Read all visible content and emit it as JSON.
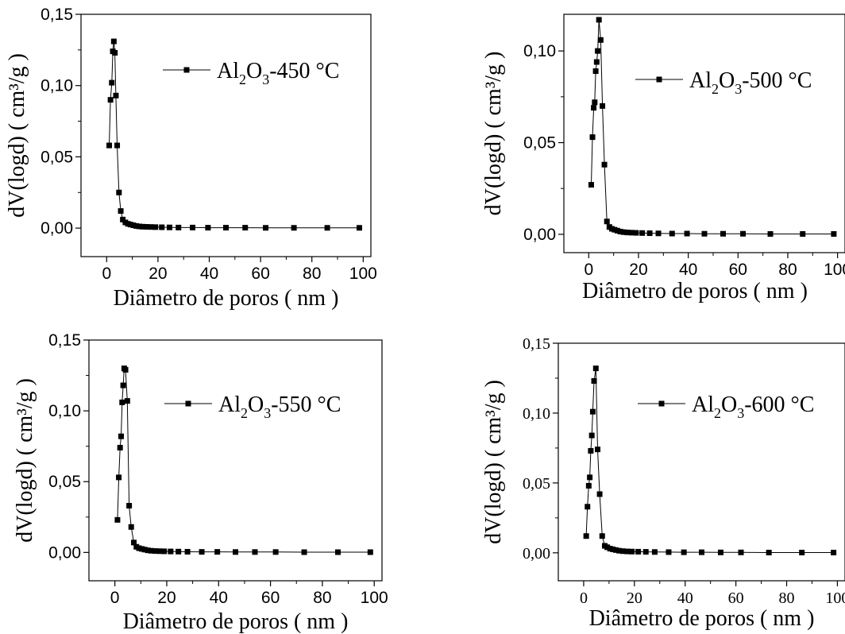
{
  "chart_data": [
    {
      "type": "line",
      "xlabel": "Diâmetro de poros ( nm )",
      "ylabel": "dV(logd) ( cm³/g )",
      "xlim": [
        -10,
        103
      ],
      "ylim": [
        -0.02,
        0.15
      ],
      "x_ticks": [
        "0",
        "20",
        "40",
        "60",
        "80",
        "100"
      ],
      "y_ticks": [
        "0,00",
        "0,05",
        "0,10",
        "0,15"
      ],
      "legend": {
        "prefix": "Al",
        "sub1": "2",
        "mid": "O",
        "sub2": "3",
        "suffix": "-450 °C"
      },
      "series": [
        {
          "name": "Al2O3-450 °C",
          "x": [
            1.0,
            1.5,
            2.0,
            2.4,
            2.8,
            3.2,
            3.6,
            4.1,
            4.8,
            5.5,
            6.3,
            7.3,
            8.3,
            9.3,
            10.4,
            11.5,
            12.7,
            14.0,
            15.5,
            17.2,
            19.0,
            21.5,
            24.5,
            28.0,
            33.5,
            39.5,
            46.5,
            54.0,
            62.0,
            73.0,
            86.0,
            98.5
          ],
          "y": [
            0.058,
            0.09,
            0.102,
            0.124,
            0.131,
            0.123,
            0.093,
            0.058,
            0.025,
            0.012,
            0.006,
            0.004,
            0.003,
            0.0025,
            0.002,
            0.0015,
            0.0012,
            0.001,
            0.0009,
            0.0008,
            0.0007,
            0.0006,
            0.0005,
            0.0004,
            0.0004,
            0.0003,
            0.0003,
            0.0003,
            0.0002,
            0.0002,
            0.0002,
            0.0002
          ]
        }
      ]
    },
    {
      "type": "line",
      "xlabel": "Diâmetro de poros ( nm )",
      "ylabel": "dV(logd) ( cm³/g )",
      "xlim": [
        -10,
        103
      ],
      "ylim": [
        -0.01,
        0.12
      ],
      "x_ticks": [
        "0",
        "20",
        "40",
        "60",
        "80",
        "100"
      ],
      "y_ticks": [
        "0,00",
        "0,05",
        "0,10"
      ],
      "legend": {
        "prefix": "Al",
        "sub1": "2",
        "mid": "O",
        "sub2": "3",
        "suffix": "-500 °C"
      },
      "series": [
        {
          "name": "Al2O3-500 °C",
          "x": [
            1.0,
            1.5,
            2.0,
            2.4,
            2.8,
            3.2,
            3.6,
            4.1,
            4.8,
            5.5,
            6.3,
            7.3,
            8.3,
            9.3,
            10.4,
            11.5,
            12.7,
            14.0,
            15.5,
            17.2,
            19.0,
            21.5,
            24.5,
            28.0,
            33.5,
            39.5,
            46.5,
            54.0,
            62.0,
            73.0,
            86.0,
            98.5
          ],
          "y": [
            0.027,
            0.053,
            0.069,
            0.072,
            0.089,
            0.094,
            0.1,
            0.117,
            0.106,
            0.07,
            0.038,
            0.007,
            0.004,
            0.003,
            0.0025,
            0.002,
            0.0015,
            0.0012,
            0.001,
            0.0009,
            0.0008,
            0.0007,
            0.0006,
            0.0005,
            0.0004,
            0.0004,
            0.0003,
            0.0003,
            0.0003,
            0.0002,
            0.0002,
            0.0002
          ]
        }
      ]
    },
    {
      "type": "line",
      "xlabel": "Diâmetro de poros ( nm )",
      "ylabel": "dV(logd) ( cm³/g )",
      "xlim": [
        -10,
        103
      ],
      "ylim": [
        -0.02,
        0.15
      ],
      "x_ticks": [
        "0",
        "20",
        "40",
        "60",
        "80",
        "100"
      ],
      "y_ticks": [
        "0,00",
        "0,05",
        "0,10",
        "0,15"
      ],
      "legend": {
        "prefix": "Al",
        "sub1": "2",
        "mid": "O",
        "sub2": "3",
        "suffix": "-550 °C"
      },
      "series": [
        {
          "name": "Al2O3-550 °C",
          "x": [
            1.0,
            1.5,
            2.0,
            2.4,
            2.8,
            3.2,
            3.6,
            4.1,
            4.8,
            5.5,
            6.3,
            7.3,
            8.3,
            9.3,
            10.4,
            11.5,
            12.7,
            14.0,
            15.5,
            17.2,
            19.0,
            21.5,
            24.5,
            28.0,
            33.5,
            39.5,
            46.5,
            54.0,
            62.0,
            73.0,
            86.0,
            98.5
          ],
          "y": [
            0.023,
            0.053,
            0.074,
            0.082,
            0.106,
            0.118,
            0.13,
            0.129,
            0.107,
            0.033,
            0.018,
            0.007,
            0.004,
            0.003,
            0.0025,
            0.002,
            0.0015,
            0.0012,
            0.001,
            0.0009,
            0.0008,
            0.0007,
            0.0006,
            0.0005,
            0.0004,
            0.0004,
            0.0003,
            0.0003,
            0.0003,
            0.0002,
            0.0002,
            0.0002
          ]
        }
      ]
    },
    {
      "type": "line",
      "xlabel": "Diâmetro de poros ( nm )",
      "ylabel": "dV(logd) ( cm³/g )",
      "xlim": [
        -10,
        103
      ],
      "ylim": [
        -0.02,
        0.15
      ],
      "x_ticks": [
        "0",
        "20",
        "40",
        "60",
        "80",
        "100"
      ],
      "y_ticks": [
        "0,00",
        "0,05",
        "0,10",
        "0,15"
      ],
      "legend": {
        "prefix": "Al",
        "sub1": "2",
        "mid": "O",
        "sub2": "3",
        "suffix": "-600 °C"
      },
      "series": [
        {
          "name": "Al2O3-600 °C",
          "x": [
            1.0,
            1.5,
            2.0,
            2.4,
            2.8,
            3.2,
            3.6,
            4.1,
            4.8,
            5.5,
            6.3,
            7.3,
            8.3,
            9.3,
            10.4,
            11.5,
            12.7,
            14.0,
            15.5,
            17.2,
            19.0,
            21.5,
            24.5,
            28.0,
            33.5,
            39.5,
            46.5,
            54.0,
            62.0,
            73.0,
            86.0,
            98.5
          ],
          "y": [
            0.012,
            0.033,
            0.048,
            0.054,
            0.073,
            0.084,
            0.101,
            0.123,
            0.132,
            0.074,
            0.042,
            0.012,
            0.005,
            0.004,
            0.003,
            0.0025,
            0.002,
            0.0015,
            0.0012,
            0.001,
            0.0009,
            0.0008,
            0.0007,
            0.0006,
            0.0005,
            0.0004,
            0.0004,
            0.0003,
            0.0003,
            0.0002,
            0.0002,
            0.0002
          ]
        }
      ]
    }
  ]
}
